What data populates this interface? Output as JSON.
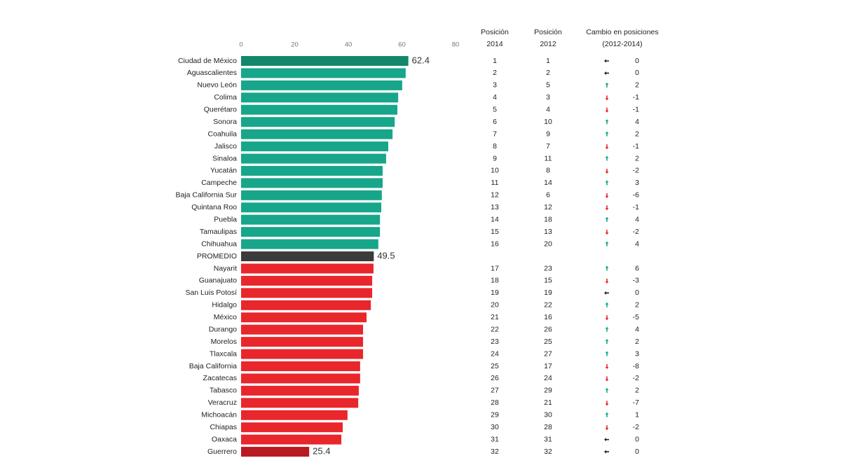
{
  "chart_data": {
    "type": "bar",
    "orientation": "horizontal",
    "categories": [
      "Ciudad de México",
      "Aguascalientes",
      "Nuevo León",
      "Colima",
      "Querétaro",
      "Sonora",
      "Coahuila",
      "Jalisco",
      "Sinaloa",
      "Yucatán",
      "Campeche",
      "Baja California Sur",
      "Quintana Roo",
      "Puebla",
      "Tamaulipas",
      "Chihuahua",
      "PROMEDIO",
      "Nayarit",
      "Guanajuato",
      "San Luis Potosí",
      "Hidalgo",
      "México",
      "Durango",
      "Morelos",
      "Tlaxcala",
      "Baja California",
      "Zacatecas",
      "Tabasco",
      "Veracruz",
      "Michoacán",
      "Chiapas",
      "Oaxaca",
      "Guerrero"
    ],
    "values": [
      62.4,
      61.4,
      60.1,
      58.6,
      58.3,
      57.3,
      56.5,
      54.9,
      54.1,
      52.8,
      52.8,
      52.5,
      52.3,
      51.8,
      51.8,
      51.2,
      49.5,
      49.4,
      48.9,
      48.9,
      48.4,
      46.8,
      45.5,
      45.5,
      45.5,
      44.4,
      44.4,
      43.9,
      43.7,
      39.7,
      37.9,
      37.4,
      25.4
    ],
    "value_labels": [
      "62.4",
      null,
      null,
      null,
      null,
      null,
      null,
      null,
      null,
      null,
      null,
      null,
      null,
      null,
      null,
      null,
      "49.5",
      null,
      null,
      null,
      null,
      null,
      null,
      null,
      null,
      null,
      null,
      null,
      null,
      null,
      null,
      null,
      "25.4"
    ],
    "colors": [
      "#12876c",
      "#17a68a",
      "#17a68a",
      "#17a68a",
      "#17a68a",
      "#17a68a",
      "#17a68a",
      "#17a68a",
      "#17a68a",
      "#17a68a",
      "#17a68a",
      "#17a68a",
      "#17a68a",
      "#17a68a",
      "#17a68a",
      "#17a68a",
      "#3b3b3b",
      "#e8262c",
      "#e8262c",
      "#e8262c",
      "#e8262c",
      "#e8262c",
      "#e8262c",
      "#e8262c",
      "#e8262c",
      "#e8262c",
      "#e8262c",
      "#e8262c",
      "#e8262c",
      "#e8262c",
      "#e8262c",
      "#e8262c",
      "#b81b22"
    ],
    "xlim": [
      0,
      80
    ],
    "xticks": [
      0,
      20,
      40,
      60,
      80
    ],
    "grid": false,
    "table": {
      "columns": [
        [
          "Posición",
          "2014"
        ],
        [
          "Posición",
          "2012"
        ],
        [
          "Cambio en posiciones",
          "(2012-2014)"
        ]
      ],
      "rows": [
        [
          1,
          1,
          0
        ],
        [
          2,
          2,
          0
        ],
        [
          3,
          5,
          2
        ],
        [
          4,
          3,
          -1
        ],
        [
          5,
          4,
          -1
        ],
        [
          6,
          10,
          4
        ],
        [
          7,
          9,
          2
        ],
        [
          8,
          7,
          -1
        ],
        [
          9,
          11,
          2
        ],
        [
          10,
          8,
          -2
        ],
        [
          11,
          14,
          3
        ],
        [
          12,
          6,
          -6
        ],
        [
          13,
          12,
          -1
        ],
        [
          14,
          18,
          4
        ],
        [
          15,
          13,
          -2
        ],
        [
          16,
          20,
          4
        ],
        null,
        [
          17,
          23,
          6
        ],
        [
          18,
          15,
          -3
        ],
        [
          19,
          19,
          0
        ],
        [
          20,
          22,
          2
        ],
        [
          21,
          16,
          -5
        ],
        [
          22,
          26,
          4
        ],
        [
          23,
          25,
          2
        ],
        [
          24,
          27,
          3
        ],
        [
          25,
          17,
          -8
        ],
        [
          26,
          24,
          -2
        ],
        [
          27,
          29,
          2
        ],
        [
          28,
          21,
          -7
        ],
        [
          29,
          30,
          1
        ],
        [
          30,
          28,
          -2
        ],
        [
          31,
          31,
          0
        ],
        [
          32,
          32,
          0
        ]
      ]
    }
  }
}
